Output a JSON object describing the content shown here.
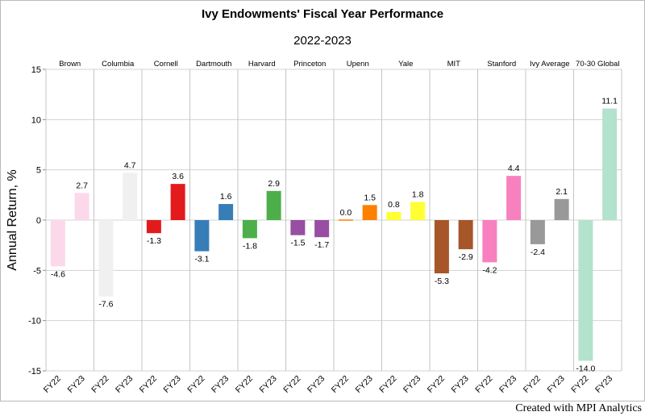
{
  "title": "Ivy Endowments' Fiscal Year Performance",
  "subtitle": "2022-2023",
  "credit": "Created with MPI Analytics",
  "chart_data": {
    "type": "bar",
    "title": "Ivy Endowments' Fiscal Year Performance",
    "subtitle": "2022-2023",
    "xlabel": "",
    "ylabel": "Annual Return, %",
    "ylim": [
      -15,
      15
    ],
    "yticks": [
      15,
      10,
      5,
      0,
      -5,
      -10,
      -15
    ],
    "grid": true,
    "legend": "none",
    "panels": [
      {
        "name": "Brown",
        "color": "#fbd9ea",
        "values": [
          {
            "x": "FY22",
            "y": -4.6,
            "label": "-4.6"
          },
          {
            "x": "FY23",
            "y": 2.7,
            "label": "2.7"
          }
        ]
      },
      {
        "name": "Columbia",
        "color": "#f0f0f0",
        "values": [
          {
            "x": "FY22",
            "y": -7.6,
            "label": "-7.6"
          },
          {
            "x": "FY23",
            "y": 4.7,
            "label": "4.7"
          }
        ]
      },
      {
        "name": "Cornell",
        "color": "#e31a1c",
        "values": [
          {
            "x": "FY22",
            "y": -1.3,
            "label": "-1.3"
          },
          {
            "x": "FY23",
            "y": 3.6,
            "label": "3.6"
          }
        ]
      },
      {
        "name": "Dartmouth",
        "color": "#377eb8",
        "values": [
          {
            "x": "FY22",
            "y": -3.1,
            "label": "-3.1"
          },
          {
            "x": "FY23",
            "y": 1.6,
            "label": "1.6"
          }
        ]
      },
      {
        "name": "Harvard",
        "color": "#4daf4a",
        "values": [
          {
            "x": "FY22",
            "y": -1.8,
            "label": "-1.8"
          },
          {
            "x": "FY23",
            "y": 2.9,
            "label": "2.9"
          }
        ]
      },
      {
        "name": "Princeton",
        "color": "#984ea3",
        "values": [
          {
            "x": "FY22",
            "y": -1.5,
            "label": "-1.5"
          },
          {
            "x": "FY23",
            "y": -1.7,
            "label": "-1.7"
          }
        ]
      },
      {
        "name": "Upenn",
        "color": "#ff7f00",
        "values": [
          {
            "x": "FY22",
            "y": 0.0,
            "label": "0.0"
          },
          {
            "x": "FY23",
            "y": 1.5,
            "label": "1.5"
          }
        ]
      },
      {
        "name": "Yale",
        "color": "#ffff33",
        "values": [
          {
            "x": "FY22",
            "y": 0.8,
            "label": "0.8"
          },
          {
            "x": "FY23",
            "y": 1.8,
            "label": "1.8"
          }
        ]
      },
      {
        "name": "MIT",
        "color": "#a65628",
        "values": [
          {
            "x": "FY22",
            "y": -5.3,
            "label": "-5.3"
          },
          {
            "x": "FY23",
            "y": -2.9,
            "label": "-2.9"
          }
        ]
      },
      {
        "name": "Stanford",
        "color": "#f781bf",
        "values": [
          {
            "x": "FY22",
            "y": -4.2,
            "label": "-4.2"
          },
          {
            "x": "FY23",
            "y": 4.4,
            "label": "4.4"
          }
        ]
      },
      {
        "name": "Ivy Average",
        "color": "#999999",
        "values": [
          {
            "x": "FY22",
            "y": -2.4,
            "label": "-2.4"
          },
          {
            "x": "FY23",
            "y": 2.1,
            "label": "2.1"
          }
        ]
      },
      {
        "name": "70-30 Global",
        "color": "#b3e2cd",
        "values": [
          {
            "x": "FY22",
            "y": -14.0,
            "label": "-14.0"
          },
          {
            "x": "FY23",
            "y": 11.1,
            "label": "11.1"
          }
        ]
      }
    ]
  }
}
